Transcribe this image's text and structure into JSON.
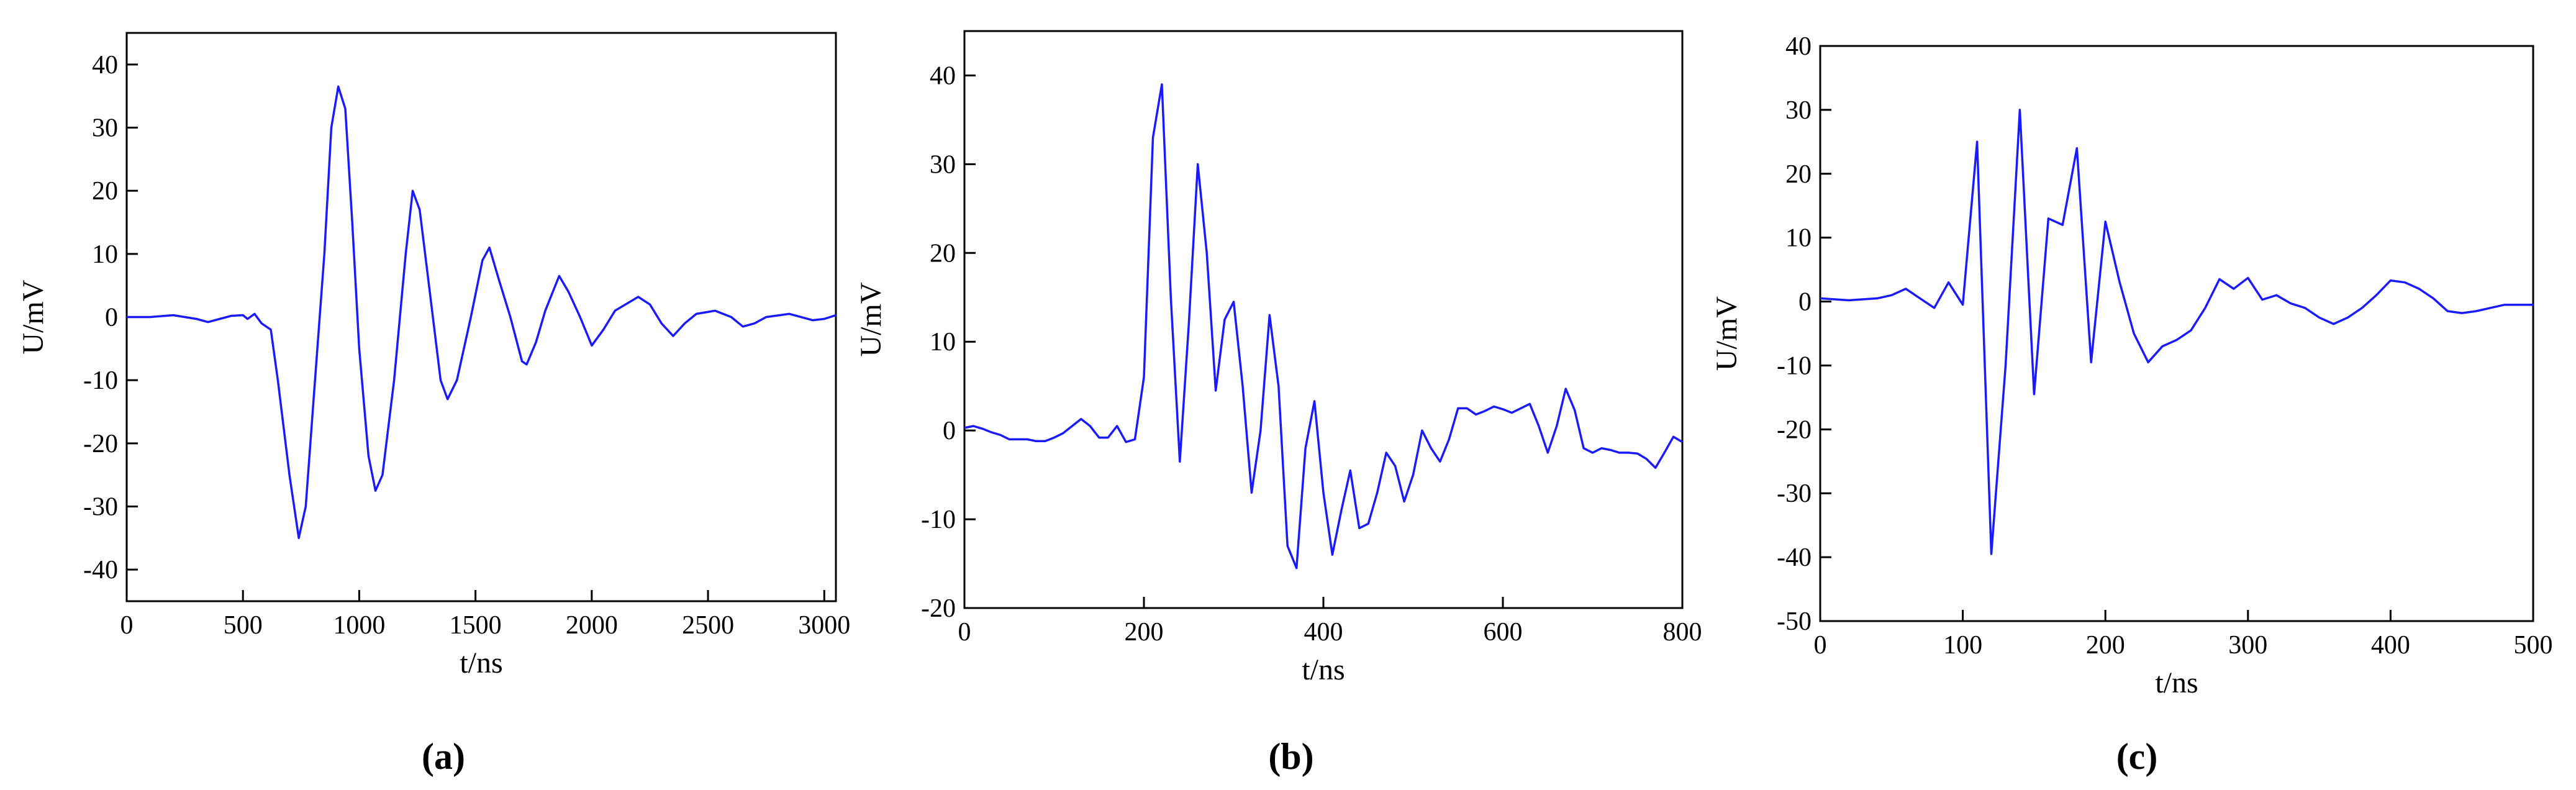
{
  "chart_data": [
    {
      "type": "line",
      "caption": "(a)",
      "xlabel": "t/ns",
      "ylabel": "U/mV",
      "color": "#1a1aff",
      "xlim": [
        0,
        3050
      ],
      "xticks": [
        0,
        500,
        1000,
        1500,
        2000,
        2500,
        3000
      ],
      "ylim": [
        -45,
        45
      ],
      "yticks": [
        -40,
        -30,
        -20,
        -10,
        0,
        10,
        20,
        30,
        40
      ],
      "x": [
        0,
        100,
        200,
        300,
        350,
        400,
        450,
        500,
        520,
        550,
        580,
        620,
        650,
        700,
        740,
        770,
        800,
        850,
        880,
        910,
        940,
        970,
        1000,
        1040,
        1070,
        1100,
        1150,
        1200,
        1230,
        1260,
        1300,
        1350,
        1380,
        1420,
        1480,
        1530,
        1560,
        1600,
        1650,
        1700,
        1720,
        1760,
        1800,
        1860,
        1900,
        1950,
        2000,
        2050,
        2100,
        2200,
        2250,
        2300,
        2350,
        2400,
        2450,
        2530,
        2600,
        2650,
        2700,
        2750,
        2850,
        2950,
        3000,
        3050
      ],
      "values": [
        0,
        0,
        0.3,
        -0.3,
        -0.8,
        -0.3,
        0.2,
        0.3,
        -0.3,
        0.5,
        -1,
        -2,
        -10,
        -25,
        -35,
        -30,
        -15,
        10,
        30,
        36.5,
        33,
        15,
        -5,
        -22,
        -27.5,
        -25,
        -10,
        10,
        20,
        17,
        5,
        -10,
        -13,
        -10,
        0,
        9,
        11,
        6,
        0,
        -7,
        -7.5,
        -4,
        1,
        6.5,
        4,
        0,
        -4.5,
        -2,
        1,
        3.2,
        2,
        -1,
        -3,
        -1,
        0.5,
        1,
        0,
        -1.5,
        -1,
        0,
        0.5,
        -0.5,
        -0.3,
        0.3
      ]
    },
    {
      "type": "line",
      "caption": "(b)",
      "xlabel": "t/ns",
      "ylabel": "U/mV",
      "color": "#1a1aff",
      "xlim": [
        0,
        800
      ],
      "xticks": [
        0,
        200,
        400,
        600,
        800
      ],
      "ylim": [
        -20,
        45
      ],
      "yticks": [
        -20,
        -10,
        0,
        10,
        20,
        30,
        40
      ],
      "x": [
        0,
        10,
        20,
        30,
        40,
        50,
        60,
        70,
        80,
        90,
        100,
        110,
        120,
        130,
        140,
        150,
        160,
        170,
        180,
        190,
        200,
        210,
        220,
        230,
        240,
        250,
        260,
        270,
        280,
        290,
        300,
        310,
        320,
        330,
        340,
        350,
        360,
        370,
        380,
        390,
        400,
        410,
        420,
        430,
        440,
        450,
        460,
        470,
        480,
        490,
        500,
        510,
        520,
        530,
        540,
        550,
        560,
        570,
        580,
        590,
        600,
        610,
        620,
        630,
        640,
        650,
        660,
        670,
        680,
        690,
        700,
        710,
        720,
        730,
        740,
        750,
        760,
        770,
        780,
        790,
        800
      ],
      "values": [
        0.3,
        0.5,
        0.2,
        -0.2,
        -0.5,
        -1,
        -1,
        -1,
        -1.2,
        -1.2,
        -0.8,
        -0.3,
        0.5,
        1.3,
        0.5,
        -0.8,
        -0.8,
        0.5,
        -1.3,
        -1,
        6,
        33,
        39,
        15,
        -3.5,
        12,
        30,
        20,
        4.5,
        12.5,
        14.5,
        5,
        -7,
        0,
        13,
        5,
        -13,
        -15.5,
        -2,
        3.3,
        -7,
        -14,
        -9,
        -4.5,
        -11,
        -10.5,
        -7,
        -2.5,
        -4,
        -8,
        -5,
        0,
        -2,
        -3.5,
        -1,
        2.5,
        2.5,
        1.8,
        2.2,
        2.7,
        2.4,
        2,
        2.5,
        3,
        0.5,
        -2.5,
        0.5,
        4.7,
        2.3,
        -2,
        -2.5,
        -2,
        -2.2,
        -2.5,
        -2.5,
        -2.6,
        -3.2,
        -4.2,
        -2.5,
        -0.7,
        -1.3
      ]
    },
    {
      "type": "line",
      "caption": "(c)",
      "xlabel": "t/ns",
      "ylabel": "U/mV",
      "color": "#1a1aff",
      "xlim": [
        0,
        500
      ],
      "xticks": [
        0,
        100,
        200,
        300,
        400,
        500
      ],
      "ylim": [
        -50,
        40
      ],
      "yticks": [
        -50,
        -40,
        -30,
        -20,
        -10,
        0,
        10,
        20,
        30,
        40
      ],
      "x": [
        0,
        20,
        40,
        50,
        60,
        70,
        80,
        90,
        100,
        110,
        120,
        130,
        140,
        150,
        160,
        170,
        180,
        190,
        200,
        210,
        220,
        230,
        240,
        250,
        260,
        270,
        280,
        290,
        300,
        310,
        320,
        330,
        340,
        350,
        360,
        370,
        380,
        390,
        400,
        410,
        420,
        430,
        440,
        450,
        460,
        470,
        480,
        490,
        500
      ],
      "values": [
        0.5,
        0.2,
        0.5,
        1,
        2,
        0.5,
        -1,
        3,
        -0.5,
        25,
        -39.5,
        -10,
        30,
        -14.5,
        13,
        12,
        24,
        -9.5,
        12.5,
        3,
        -5,
        -9.5,
        -7,
        -6,
        -4.5,
        -1,
        3.5,
        2,
        3.7,
        0.3,
        1,
        -0.3,
        -1,
        -2.5,
        -3.5,
        -2.5,
        -1,
        1,
        3.3,
        3,
        2,
        0.5,
        -1.5,
        -1.8,
        -1.5,
        -1,
        -0.5,
        -0.5,
        -0.5
      ]
    }
  ]
}
